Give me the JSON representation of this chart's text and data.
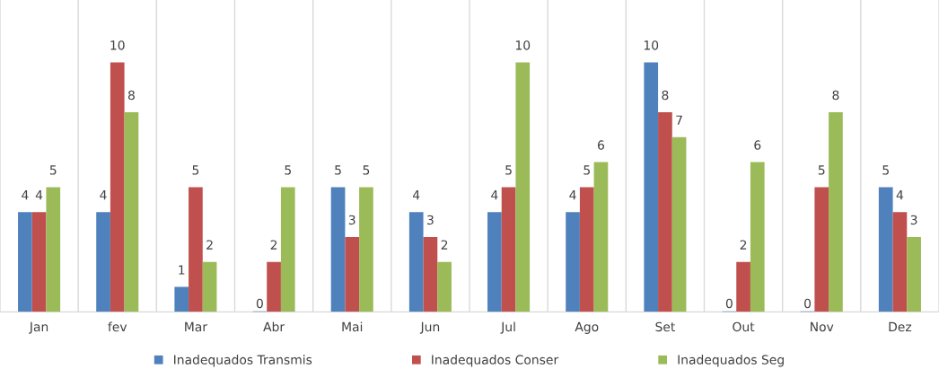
{
  "chart_data": {
    "type": "bar",
    "categories": [
      "Jan",
      "fev",
      "Mar",
      "Abr",
      "Mai",
      "Jun",
      "Jul",
      "Ago",
      "Set",
      "Out",
      "Nov",
      "Dez"
    ],
    "series": [
      {
        "name": "Inadequados Transmis",
        "color": "#4f81bd",
        "values": [
          4,
          4,
          1,
          0,
          5,
          4,
          4,
          4,
          10,
          0,
          0,
          5
        ]
      },
      {
        "name": "Inadequados Conser",
        "color": "#c0504d",
        "values": [
          4,
          10,
          5,
          2,
          3,
          3,
          5,
          5,
          8,
          2,
          5,
          4
        ]
      },
      {
        "name": "Inadequados Seg",
        "color": "#9bbb59",
        "values": [
          5,
          8,
          2,
          5,
          5,
          2,
          10,
          6,
          7,
          6,
          8,
          3
        ]
      }
    ],
    "data_labels": true,
    "grid": "x",
    "legend": "bottom",
    "tick_labels": "x"
  }
}
